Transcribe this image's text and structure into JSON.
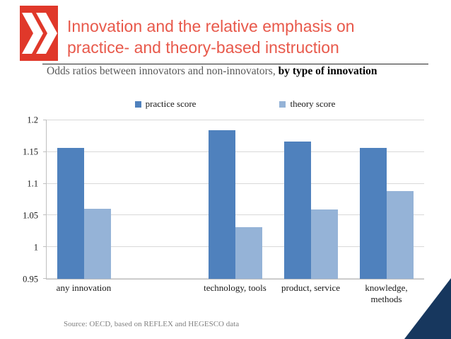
{
  "header": {
    "title_line1": "Innovation and the relative emphasis on",
    "title_line2": "practice- and theory-based instruction"
  },
  "subtitle": {
    "normal": "Odds ratios between innovators and non-innovators, ",
    "bold": "by type of innovation"
  },
  "footer": {
    "source": "Source: OECD, based on REFLEX and HEGESCO data"
  },
  "colors": {
    "logo_red": "#e0382a",
    "title_red": "#e8594b",
    "practice_blue": "#4f81bd",
    "theory_blue": "#95b3d7",
    "corner_navy": "#17375e",
    "gridline": "#d9d9d9"
  },
  "chart_data": {
    "type": "bar",
    "title": "Odds ratios between innovators and non-innovators, by type of innovation",
    "categories": [
      "any innovation",
      "",
      "technology, tools",
      "product, service",
      "knowledge,\nmethods"
    ],
    "series": [
      {
        "name": "practice score",
        "color": "#4f81bd",
        "values": [
          1.157,
          null,
          1.184,
          1.167,
          1.156
        ]
      },
      {
        "name": "theory score",
        "color": "#95b3d7",
        "values": [
          1.061,
          null,
          1.031,
          1.059,
          1.088
        ]
      }
    ],
    "ylim": [
      0.95,
      1.2
    ],
    "yticks": [
      0.95,
      1,
      1.05,
      1.1,
      1.15,
      1.2
    ],
    "grid": true,
    "legend_position": "top"
  }
}
